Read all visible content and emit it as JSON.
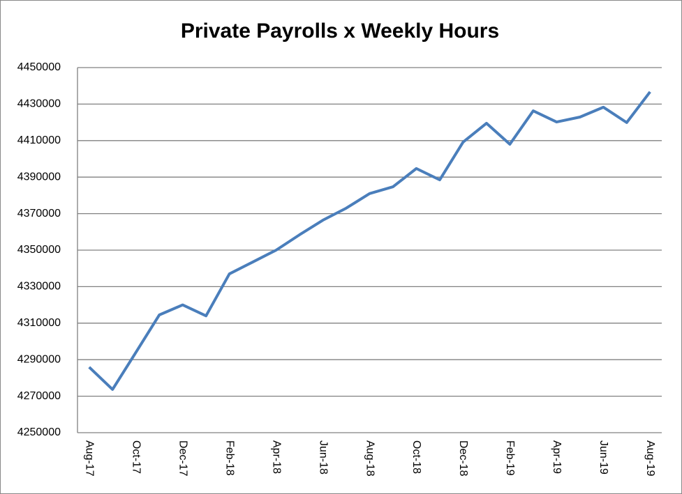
{
  "chart_data": {
    "type": "line",
    "title": "Private  Payrolls x Weekly Hours",
    "categories": [
      "Aug-17",
      null,
      "Oct-17",
      null,
      "Dec-17",
      null,
      "Feb-18",
      null,
      "Apr-18",
      null,
      "Jun-18",
      null,
      "Aug-18",
      null,
      "Oct-18",
      null,
      "Dec-18",
      null,
      "Feb-19",
      null,
      "Apr-19",
      null,
      "Jun-19",
      null,
      "Aug-19"
    ],
    "series": [
      {
        "color": "#4a7ebb",
        "values": [
          4285900,
          4273700,
          4294000,
          4314500,
          4320000,
          4314000,
          4337000,
          4343500,
          4350000,
          4358400,
          4366400,
          4373000,
          4381000,
          4384700,
          4394700,
          4388500,
          4409200,
          4419500,
          4408000,
          4426300,
          4420200,
          4422900,
          4428300,
          4419900,
          4436700
        ]
      }
    ],
    "ylim": [
      4250000,
      4450000
    ],
    "yticks": [
      4250000,
      4270000,
      4290000,
      4310000,
      4330000,
      4350000,
      4370000,
      4390000,
      4410000,
      4430000,
      4450000
    ],
    "grid": true
  }
}
